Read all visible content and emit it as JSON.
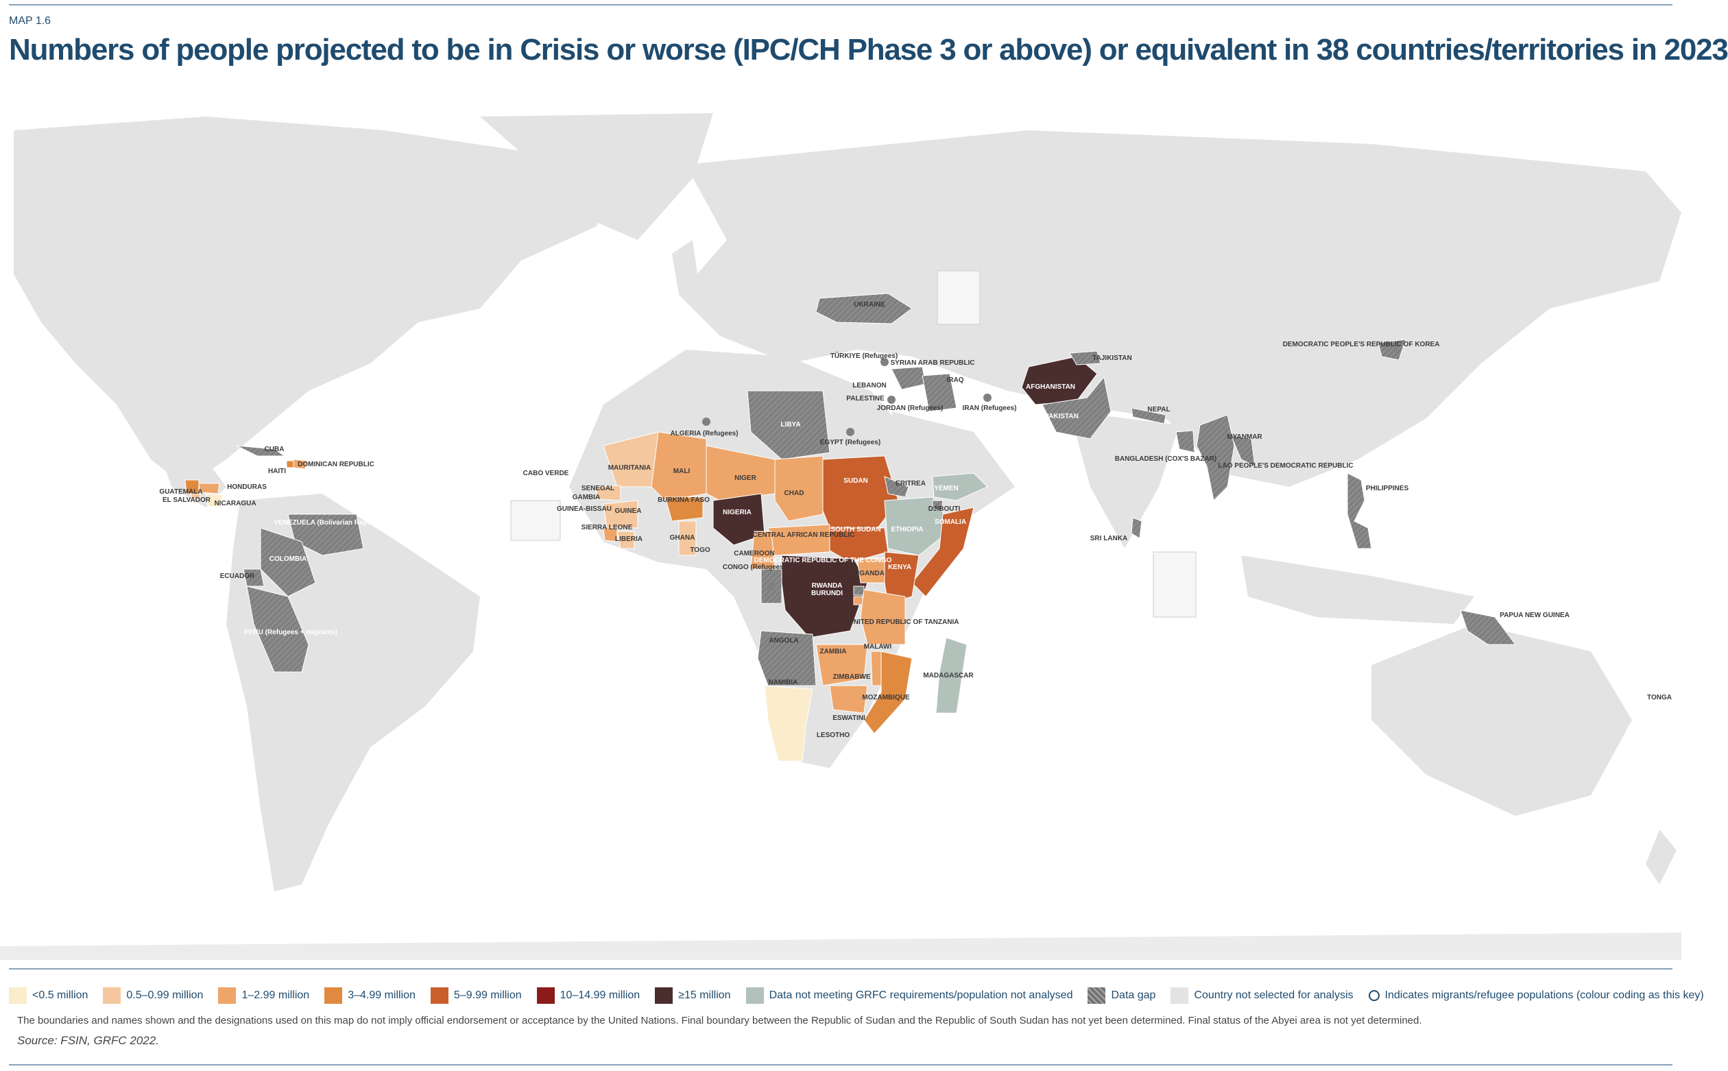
{
  "map_id": "MAP 1.6",
  "title": "Numbers of people projected to be in Crisis or worse (IPC/CH Phase 3 or above) or equivalent in 38 countries/territories in 2023",
  "colors": {
    "ocean": "#ffffff",
    "land": "#e3e3e3",
    "lt05": "#fbeccc",
    "m05_099": "#f5c79e",
    "m1_299": "#eea56a",
    "m3_499": "#e08a3f",
    "m5_999": "#c85f2d",
    "m10_1499": "#8b1a1a",
    "gte15": "#4a2d2d",
    "not_meeting": "#b3c1bb",
    "data_gap": "#808080",
    "not_selected": "#e3e3e3",
    "title": "#1f4b6e"
  },
  "legend": [
    {
      "key": "lt05",
      "label": "<0.5 million"
    },
    {
      "key": "m05_099",
      "label": "0.5–0.99 million"
    },
    {
      "key": "m1_299",
      "label": "1–2.99 million"
    },
    {
      "key": "m3_499",
      "label": "3–4.99 million"
    },
    {
      "key": "m5_999",
      "label": "5–9.99 million"
    },
    {
      "key": "m10_1499",
      "label": "10–14.99 million"
    },
    {
      "key": "gte15",
      "label": "≥15 million"
    },
    {
      "key": "not_meeting",
      "label": "Data not meeting GRFC requirements/population not analysed"
    },
    {
      "key": "data_gap",
      "label": "Data gap"
    },
    {
      "key": "not_selected",
      "label": "Country not selected for analysis"
    },
    {
      "key": "ring",
      "label": "Indicates migrants/refugee populations (colour coding as this key)"
    }
  ],
  "countries": [
    {
      "label": "UKRAINE",
      "category": "data_gap"
    },
    {
      "label": "TÜRKIYE (Refugees)",
      "category": "data_gap"
    },
    {
      "label": "SYRIAN ARAB REPUBLIC",
      "category": "data_gap"
    },
    {
      "label": "IRAQ",
      "category": "data_gap"
    },
    {
      "label": "LEBANON",
      "category": "data_gap"
    },
    {
      "label": "PALESTINE",
      "category": "data_gap"
    },
    {
      "label": "JORDAN (Refugees)",
      "category": "data_gap"
    },
    {
      "label": "IRAN (Refugees)",
      "category": "data_gap"
    },
    {
      "label": "AFGHANISTAN",
      "category": "gte15"
    },
    {
      "label": "TAJIKISTAN",
      "category": "data_gap"
    },
    {
      "label": "PAKISTAN",
      "category": "data_gap"
    },
    {
      "label": "NEPAL",
      "category": "data_gap"
    },
    {
      "label": "BANGLADESH (COX'S BAZAR)",
      "category": "data_gap"
    },
    {
      "label": "MYANMAR",
      "category": "data_gap"
    },
    {
      "label": "LAO PEOPLE'S DEMOCRATIC REPUBLIC",
      "category": "data_gap"
    },
    {
      "label": "SRI LANKA",
      "category": "data_gap"
    },
    {
      "label": "PHILIPPINES",
      "category": "data_gap"
    },
    {
      "label": "DEMOCRATIC PEOPLE'S REPUBLIC OF KOREA",
      "category": "data_gap"
    },
    {
      "label": "PAPUA NEW GUINEA",
      "category": "data_gap"
    },
    {
      "label": "TONGA",
      "category": "not_selected"
    },
    {
      "label": "LIBYA",
      "category": "data_gap"
    },
    {
      "label": "ALGERIA (Refugees)",
      "category": "data_gap"
    },
    {
      "label": "EGYPT (Refugees)",
      "category": "data_gap"
    },
    {
      "label": "SUDAN",
      "category": "m5_999"
    },
    {
      "label": "ERITREA",
      "category": "data_gap"
    },
    {
      "label": "YEMEN",
      "category": "not_meeting"
    },
    {
      "label": "DJIBOUTI",
      "category": "data_gap"
    },
    {
      "label": "SOMALIA",
      "category": "m5_999"
    },
    {
      "label": "ETHIOPIA",
      "category": "not_meeting"
    },
    {
      "label": "SOUTH SUDAN",
      "category": "m5_999"
    },
    {
      "label": "KENYA",
      "category": "m5_999"
    },
    {
      "label": "UGANDA",
      "category": "m1_299"
    },
    {
      "label": "RWANDA",
      "category": "data_gap"
    },
    {
      "label": "BURUNDI",
      "category": "m1_299"
    },
    {
      "label": "UNITED REPUBLIC OF TANZANIA",
      "category": "m1_299"
    },
    {
      "label": "DEMOCRATIC REPUBLIC OF THE CONGO",
      "category": "gte15"
    },
    {
      "label": "CONGO (Refugees)",
      "category": "data_gap"
    },
    {
      "label": "CENTRAL AFRICAN REPUBLIC",
      "category": "m1_299"
    },
    {
      "label": "CHAD",
      "category": "m1_299"
    },
    {
      "label": "NIGER",
      "category": "m1_299"
    },
    {
      "label": "NIGERIA",
      "category": "gte15"
    },
    {
      "label": "CAMEROON",
      "category": "m1_299"
    },
    {
      "label": "MALI",
      "category": "m1_299"
    },
    {
      "label": "MAURITANIA",
      "category": "m05_099"
    },
    {
      "label": "SENEGAL",
      "category": "m05_099"
    },
    {
      "label": "GAMBIA",
      "category": "lt05"
    },
    {
      "label": "GUINEA-BISSAU",
      "category": "lt05"
    },
    {
      "label": "GUINEA",
      "category": "m05_099"
    },
    {
      "label": "SIERRA LEONE",
      "category": "m1_299"
    },
    {
      "label": "LIBERIA",
      "category": "m05_099"
    },
    {
      "label": "BURKINA FASO",
      "category": "m3_499"
    },
    {
      "label": "GHANA",
      "category": "m05_099"
    },
    {
      "label": "TOGO",
      "category": "lt05"
    },
    {
      "label": "CABO VERDE",
      "category": "lt05"
    },
    {
      "label": "ANGOLA",
      "category": "data_gap"
    },
    {
      "label": "ZAMBIA",
      "category": "m1_299"
    },
    {
      "label": "MALAWI",
      "category": "m1_299"
    },
    {
      "label": "ZIMBABWE",
      "category": "m1_299"
    },
    {
      "label": "MOZAMBIQUE",
      "category": "m3_499"
    },
    {
      "label": "MADAGASCAR",
      "category": "not_meeting"
    },
    {
      "label": "NAMIBIA",
      "category": "lt05"
    },
    {
      "label": "ESWATINI",
      "category": "lt05"
    },
    {
      "label": "LESOTHO",
      "category": "lt05"
    },
    {
      "label": "CUBA",
      "category": "data_gap"
    },
    {
      "label": "HAITI",
      "category": "m3_499"
    },
    {
      "label": "DOMINICAN REPUBLIC",
      "category": "m1_299"
    },
    {
      "label": "GUATEMALA",
      "category": "m3_499"
    },
    {
      "label": "HONDURAS",
      "category": "m1_299"
    },
    {
      "label": "EL SALVADOR",
      "category": "m05_099"
    },
    {
      "label": "NICARAGUA",
      "category": "lt05"
    },
    {
      "label": "VENEZUELA (Bolivarian Republic of)",
      "category": "data_gap"
    },
    {
      "label": "COLOMBIA",
      "category": "data_gap"
    },
    {
      "label": "ECUADOR",
      "category": "data_gap"
    },
    {
      "label": "PERU (Refugees + migrants)",
      "category": "data_gap"
    }
  ],
  "disclaimer": "The boundaries and names shown and the designations used on this map do not imply official endorsement or acceptance by the United Nations. Final boundary between the Republic of Sudan and the Republic of South Sudan has not yet been determined. Final status of the Abyei area is not yet determined.",
  "source": "Source: FSIN, GRFC 2022."
}
